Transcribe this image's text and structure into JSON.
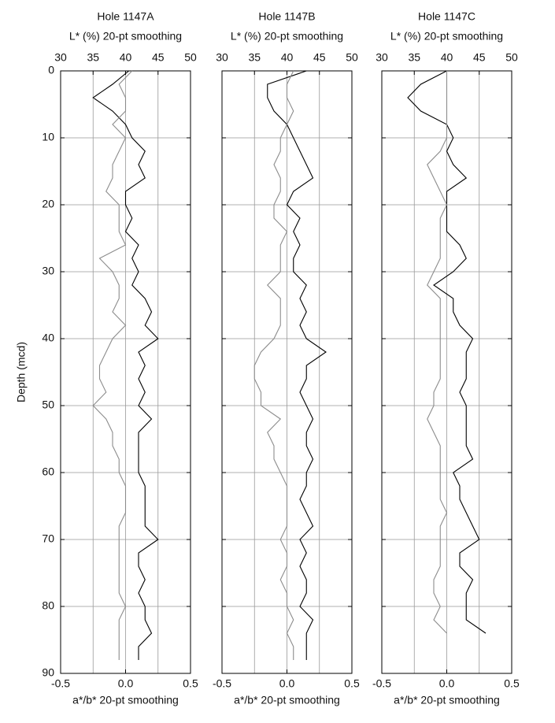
{
  "chart_data": [
    {
      "type": "line",
      "title": "Hole 1147A",
      "xlabel": "L* (%) 20-pt smoothing",
      "x2label": "a*/b* 20-pt smoothing",
      "ylabel": "Depth (mcd)",
      "xlim": [
        30,
        50
      ],
      "xticks": [
        30,
        35,
        40,
        45,
        50
      ],
      "x2lim": [
        -0.5,
        0.5
      ],
      "x2ticks": [
        -0.5,
        {
          "value": 0,
          "label": "0.0"
        },
        0.5
      ],
      "ylim": [
        90,
        0
      ],
      "yticks": [
        0,
        10,
        20,
        30,
        40,
        50,
        60,
        70,
        80,
        90
      ],
      "ytick_labels": true,
      "grid": true,
      "y": [
        0,
        2,
        4,
        6,
        8,
        10,
        12,
        14,
        16,
        18,
        20,
        22,
        24,
        26,
        28,
        30,
        32,
        34,
        36,
        38,
        40,
        42,
        44,
        46,
        48,
        50,
        52,
        54,
        56,
        58,
        60,
        62,
        64,
        66,
        68,
        70,
        72,
        74,
        76,
        78,
        80,
        82,
        84,
        86,
        88
      ],
      "series": [
        {
          "color": "#000000",
          "axis": "x",
          "values": [
            40.5,
            38,
            35,
            38,
            40,
            41,
            43,
            42,
            43,
            40,
            40,
            41,
            40,
            42,
            41,
            42,
            41,
            43,
            44,
            43,
            45,
            42,
            43,
            42,
            43,
            42,
            44,
            42,
            42,
            42,
            42,
            43,
            43,
            43,
            43,
            45,
            42,
            42,
            43,
            42,
            43,
            43,
            44,
            42,
            42
          ]
        },
        {
          "color": "#8c8c8c",
          "axis": "x2",
          "values": [
            0.05,
            -0.05,
            0,
            0,
            -0.1,
            0,
            -0.05,
            -0.1,
            -0.1,
            -0.15,
            -0.05,
            -0.05,
            -0.05,
            0,
            -0.2,
            -0.1,
            -0.05,
            -0.05,
            -0.1,
            0,
            -0.1,
            -0.15,
            -0.2,
            -0.2,
            -0.15,
            -0.25,
            -0.15,
            -0.1,
            -0.1,
            -0.05,
            -0.05,
            0,
            0,
            0,
            -0.05,
            -0.05,
            -0.05,
            -0.05,
            -0.05,
            -0.05,
            0,
            -0.05,
            -0.05,
            -0.05,
            -0.05
          ]
        }
      ]
    },
    {
      "type": "line",
      "title": "Hole 1147B",
      "xlabel": "L* (%) 20-pt smoothing",
      "x2label": "a*/b* 20-pt smoothing",
      "xlim": [
        30,
        50
      ],
      "xticks": [
        30,
        35,
        40,
        45,
        50
      ],
      "x2lim": [
        -0.5,
        0.5
      ],
      "x2ticks": [
        -0.5,
        {
          "value": 0,
          "label": "0.0"
        },
        0.5
      ],
      "ylim": [
        90,
        0
      ],
      "yticks": [
        0,
        10,
        20,
        30,
        40,
        50,
        60,
        70,
        80,
        90
      ],
      "ytick_labels": false,
      "grid": true,
      "y": [
        0,
        2,
        4,
        6,
        8,
        10,
        12,
        14,
        16,
        18,
        20,
        22,
        24,
        26,
        28,
        30,
        32,
        34,
        36,
        38,
        40,
        42,
        44,
        46,
        48,
        50,
        52,
        54,
        56,
        58,
        60,
        62,
        64,
        66,
        68,
        70,
        72,
        74,
        76,
        78,
        80,
        82,
        84,
        86,
        88
      ],
      "series": [
        {
          "color": "#000000",
          "axis": "x",
          "values": [
            43,
            37,
            37,
            38,
            40,
            41,
            42,
            43,
            44,
            41,
            40,
            42,
            41,
            42,
            41,
            41,
            43,
            42,
            43,
            42,
            43,
            46,
            43,
            43,
            42,
            43,
            44,
            43,
            43,
            44,
            43,
            43,
            42,
            43,
            44,
            42,
            43,
            42,
            43,
            43,
            42,
            44,
            43,
            43,
            43
          ]
        },
        {
          "color": "#8c8c8c",
          "axis": "x2",
          "values": [
            0.05,
            0,
            0,
            0.05,
            0,
            -0.05,
            -0.05,
            -0.1,
            -0.05,
            -0.05,
            -0.1,
            -0.1,
            0,
            -0.05,
            -0.05,
            -0.05,
            -0.15,
            -0.05,
            -0.05,
            -0.05,
            -0.1,
            -0.2,
            -0.25,
            -0.25,
            -0.2,
            -0.2,
            -0.05,
            -0.15,
            -0.1,
            -0.1,
            -0.05,
            0,
            0,
            0,
            0,
            -0.05,
            0,
            0,
            -0.05,
            0,
            0,
            0.05,
            0,
            0.05,
            0.05
          ]
        }
      ]
    },
    {
      "type": "line",
      "title": "Hole 1147C",
      "xlabel": "L* (%) 20-pt smoothing",
      "x2label": "a*/b* 20-pt smoothing",
      "xlim": [
        30,
        50
      ],
      "xticks": [
        30,
        35,
        40,
        45,
        50
      ],
      "x2lim": [
        -0.5,
        0.5
      ],
      "x2ticks": [
        -0.5,
        {
          "value": 0,
          "label": "0.0"
        },
        0.5
      ],
      "ylim": [
        90,
        0
      ],
      "yticks": [
        0,
        10,
        20,
        30,
        40,
        50,
        60,
        70,
        80,
        90
      ],
      "ytick_labels": false,
      "grid": true,
      "y": [
        0,
        2,
        4,
        6,
        8,
        10,
        12,
        14,
        16,
        18,
        20,
        22,
        24,
        26,
        28,
        30,
        32,
        34,
        36,
        38,
        40,
        42,
        44,
        46,
        48,
        50,
        52,
        54,
        56,
        58,
        60,
        62,
        64,
        66,
        68,
        70,
        72,
        74,
        76,
        78,
        80,
        82,
        84
      ],
      "series": [
        {
          "color": "#000000",
          "axis": "x",
          "values": [
            40,
            36,
            34,
            36,
            40,
            41,
            40,
            41,
            43,
            40,
            40,
            40,
            40,
            42,
            43,
            41,
            38,
            41,
            41,
            42,
            44,
            43,
            43,
            43,
            42,
            43,
            43,
            43,
            43,
            44,
            41,
            42,
            42,
            43,
            44,
            45,
            42,
            42,
            44,
            43,
            43,
            43,
            46
          ]
        },
        {
          "color": "#8c8c8c",
          "axis": "x2",
          "values": [
            0,
            0,
            0,
            0,
            0,
            0,
            -0.05,
            -0.15,
            -0.1,
            -0.05,
            0,
            -0.05,
            -0.05,
            -0.05,
            -0.05,
            -0.1,
            -0.15,
            -0.05,
            -0.05,
            -0.05,
            -0.05,
            -0.05,
            -0.05,
            -0.05,
            -0.1,
            -0.1,
            -0.15,
            -0.1,
            -0.05,
            -0.05,
            -0.05,
            -0.05,
            -0.05,
            0,
            -0.05,
            -0.05,
            -0.05,
            -0.05,
            -0.1,
            -0.1,
            -0.05,
            -0.1,
            0
          ]
        }
      ]
    }
  ]
}
